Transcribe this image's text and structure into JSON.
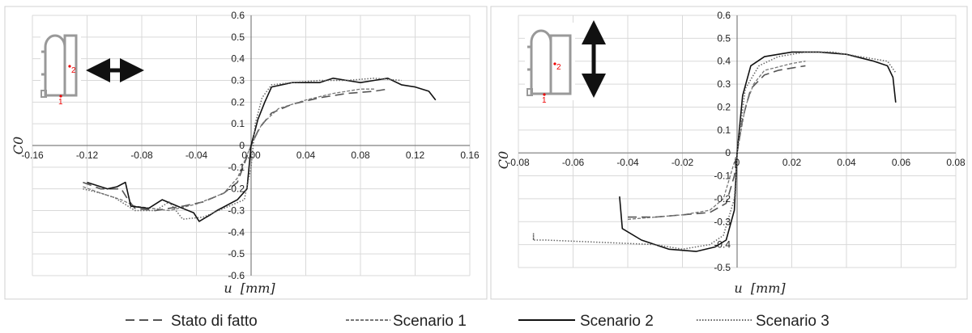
{
  "legend": [
    {
      "series": "stato",
      "label": "Stato di fatto"
    },
    {
      "series": "s1",
      "label": "Scenario 1"
    },
    {
      "series": "s2",
      "label": "Scenario 2"
    },
    {
      "series": "s3",
      "label": "Scenario 3"
    }
  ],
  "styles": {
    "stato": {
      "color": "#555555",
      "dash": "11 6",
      "width": 1.6
    },
    "s1": {
      "color": "#777777",
      "dash": "4 2",
      "width": 1.3
    },
    "s2": {
      "color": "#111111",
      "dash": "",
      "width": 1.6
    },
    "s3": {
      "color": "#666666",
      "dash": "1.5 2",
      "width": 1.5
    }
  },
  "chart_data": [
    {
      "type": "line",
      "xlabel": "u  [mm]",
      "ylabel": "C0",
      "xlim": [
        -0.16,
        0.16
      ],
      "ylim": [
        -0.6,
        0.6
      ],
      "xticks": [
        -0.16,
        -0.12,
        -0.08,
        -0.04,
        0.0,
        0.04,
        0.08,
        0.12,
        0.16
      ],
      "yticks": [
        -0.6,
        -0.5,
        -0.4,
        -0.3,
        -0.2,
        -0.1,
        0,
        0.1,
        0.2,
        0.3,
        0.4,
        0.5,
        0.6
      ],
      "xtick_labels": [
        "-0.16",
        "-0.12",
        "-0.08",
        "-0.04",
        "0.00",
        "0.04",
        "0.08",
        "0.12",
        "0.16"
      ],
      "ytick_labels": [
        "-0.6",
        "-0.5",
        "-0.4",
        "-0.3",
        "-0.2",
        "-0.1",
        "0",
        "0.1",
        "0.2",
        "0.3",
        "0.4",
        "0.5",
        "0.6"
      ],
      "grid": true,
      "inset_labels": [
        "1",
        "2"
      ],
      "load_direction": "horizontal",
      "series": [
        {
          "key": "stato",
          "points": [
            [
              -0.123,
              -0.17
            ],
            [
              -0.11,
              -0.2
            ],
            [
              -0.095,
              -0.2
            ],
            [
              -0.09,
              -0.25
            ],
            [
              -0.085,
              -0.29
            ],
            [
              -0.07,
              -0.3
            ],
            [
              -0.05,
              -0.28
            ],
            [
              -0.035,
              -0.26
            ],
            [
              -0.02,
              -0.22
            ],
            [
              -0.01,
              -0.17
            ],
            [
              0.0,
              0.0
            ],
            [
              0.006,
              0.08
            ],
            [
              0.015,
              0.15
            ],
            [
              0.03,
              0.19
            ],
            [
              0.05,
              0.22
            ],
            [
              0.07,
              0.24
            ],
            [
              0.09,
              0.25
            ],
            [
              0.1,
              0.26
            ]
          ]
        },
        {
          "key": "s1",
          "points": [
            [
              -0.123,
              -0.19
            ],
            [
              -0.11,
              -0.22
            ],
            [
              -0.095,
              -0.25
            ],
            [
              -0.085,
              -0.28
            ],
            [
              -0.06,
              -0.3
            ],
            [
              -0.04,
              -0.27
            ],
            [
              -0.02,
              -0.22
            ],
            [
              -0.01,
              -0.15
            ],
            [
              0.0,
              0.0
            ],
            [
              0.008,
              0.1
            ],
            [
              0.02,
              0.17
            ],
            [
              0.04,
              0.21
            ],
            [
              0.06,
              0.24
            ],
            [
              0.08,
              0.26
            ],
            [
              0.09,
              0.26
            ]
          ]
        },
        {
          "key": "s2",
          "points": [
            [
              -0.12,
              -0.17
            ],
            [
              -0.105,
              -0.2
            ],
            [
              -0.098,
              -0.19
            ],
            [
              -0.092,
              -0.17
            ],
            [
              -0.088,
              -0.28
            ],
            [
              -0.075,
              -0.29
            ],
            [
              -0.065,
              -0.25
            ],
            [
              -0.05,
              -0.29
            ],
            [
              -0.042,
              -0.31
            ],
            [
              -0.038,
              -0.35
            ],
            [
              -0.03,
              -0.32
            ],
            [
              -0.025,
              -0.3
            ],
            [
              -0.01,
              -0.25
            ],
            [
              -0.003,
              -0.2
            ],
            [
              0.0,
              0.0
            ],
            [
              0.005,
              0.12
            ],
            [
              0.01,
              0.2
            ],
            [
              0.015,
              0.27
            ],
            [
              0.03,
              0.29
            ],
            [
              0.05,
              0.29
            ],
            [
              0.06,
              0.31
            ],
            [
              0.07,
              0.3
            ],
            [
              0.08,
              0.29
            ],
            [
              0.09,
              0.3
            ],
            [
              0.1,
              0.31
            ],
            [
              0.11,
              0.28
            ],
            [
              0.12,
              0.27
            ],
            [
              0.13,
              0.25
            ],
            [
              0.135,
              0.21
            ]
          ]
        },
        {
          "key": "s3",
          "points": [
            [
              -0.123,
              -0.2
            ],
            [
              -0.11,
              -0.22
            ],
            [
              -0.1,
              -0.24
            ],
            [
              -0.085,
              -0.3
            ],
            [
              -0.07,
              -0.3
            ],
            [
              -0.06,
              -0.26
            ],
            [
              -0.05,
              -0.34
            ],
            [
              -0.035,
              -0.33
            ],
            [
              -0.02,
              -0.29
            ],
            [
              -0.005,
              -0.25
            ],
            [
              0.0,
              -0.1
            ],
            [
              0.003,
              0.1
            ],
            [
              0.008,
              0.22
            ],
            [
              0.015,
              0.28
            ],
            [
              0.03,
              0.29
            ],
            [
              0.05,
              0.3
            ],
            [
              0.07,
              0.3
            ],
            [
              0.09,
              0.31
            ],
            [
              0.11,
              0.3
            ]
          ]
        }
      ]
    },
    {
      "type": "line",
      "xlabel": "u  [mm]",
      "ylabel": "C0",
      "xlim": [
        -0.08,
        0.08
      ],
      "ylim": [
        -0.5,
        0.6
      ],
      "xticks": [
        -0.08,
        -0.06,
        -0.04,
        -0.02,
        0,
        0.02,
        0.04,
        0.06,
        0.08
      ],
      "yticks": [
        -0.5,
        -0.4,
        -0.3,
        -0.2,
        -0.1,
        0,
        0.1,
        0.2,
        0.3,
        0.4,
        0.5,
        0.6
      ],
      "xtick_labels": [
        "-0.08",
        "-0.06",
        "-0.04",
        "-0.02",
        "0",
        "0.02",
        "0.04",
        "0.06",
        "0.08"
      ],
      "ytick_labels": [
        "-0.5",
        "-0.4",
        "-0.3",
        "-0.2",
        "-0.1",
        "0",
        "0.1",
        "0.2",
        "0.3",
        "0.4",
        "0.5",
        "0.6"
      ],
      "grid": true,
      "inset_labels": [
        "1",
        "2"
      ],
      "load_direction": "vertical",
      "series": [
        {
          "key": "stato",
          "points": [
            [
              -0.04,
              -0.28
            ],
            [
              -0.03,
              -0.28
            ],
            [
              -0.02,
              -0.27
            ],
            [
              -0.01,
              -0.26
            ],
            [
              -0.004,
              -0.22
            ],
            [
              -0.001,
              -0.1
            ],
            [
              0.0,
              0.0
            ],
            [
              0.002,
              0.15
            ],
            [
              0.005,
              0.28
            ],
            [
              0.01,
              0.34
            ],
            [
              0.015,
              0.36
            ],
            [
              0.02,
              0.37
            ],
            [
              0.025,
              0.38
            ]
          ]
        },
        {
          "key": "s1",
          "points": [
            [
              -0.04,
              -0.29
            ],
            [
              -0.03,
              -0.28
            ],
            [
              -0.02,
              -0.27
            ],
            [
              -0.01,
              -0.25
            ],
            [
              -0.005,
              -0.2
            ],
            [
              0.0,
              0.0
            ],
            [
              0.003,
              0.2
            ],
            [
              0.006,
              0.3
            ],
            [
              0.01,
              0.36
            ],
            [
              0.02,
              0.39
            ],
            [
              0.025,
              0.4
            ]
          ]
        },
        {
          "key": "s2",
          "points": [
            [
              -0.043,
              -0.19
            ],
            [
              -0.042,
              -0.33
            ],
            [
              -0.035,
              -0.38
            ],
            [
              -0.025,
              -0.42
            ],
            [
              -0.015,
              -0.43
            ],
            [
              -0.008,
              -0.41
            ],
            [
              -0.004,
              -0.38
            ],
            [
              -0.001,
              -0.25
            ],
            [
              0.0,
              0.0
            ],
            [
              0.002,
              0.25
            ],
            [
              0.005,
              0.38
            ],
            [
              0.01,
              0.42
            ],
            [
              0.02,
              0.44
            ],
            [
              0.03,
              0.44
            ],
            [
              0.04,
              0.43
            ],
            [
              0.05,
              0.4
            ],
            [
              0.055,
              0.38
            ],
            [
              0.057,
              0.33
            ],
            [
              0.058,
              0.22
            ]
          ]
        },
        {
          "key": "s3",
          "points": [
            [
              -0.0745,
              -0.38
            ],
            [
              -0.0745,
              -0.35
            ],
            [
              -0.0745,
              -0.38
            ],
            [
              -0.07,
              -0.38
            ],
            [
              -0.05,
              -0.39
            ],
            [
              -0.03,
              -0.4
            ],
            [
              -0.02,
              -0.42
            ],
            [
              -0.01,
              -0.4
            ],
            [
              -0.005,
              -0.36
            ],
            [
              -0.001,
              -0.2
            ],
            [
              0.0,
              0.0
            ],
            [
              0.003,
              0.28
            ],
            [
              0.008,
              0.38
            ],
            [
              0.015,
              0.42
            ],
            [
              0.025,
              0.44
            ],
            [
              0.035,
              0.44
            ],
            [
              0.045,
              0.42
            ],
            [
              0.055,
              0.4
            ],
            [
              0.058,
              0.35
            ]
          ]
        }
      ]
    }
  ]
}
